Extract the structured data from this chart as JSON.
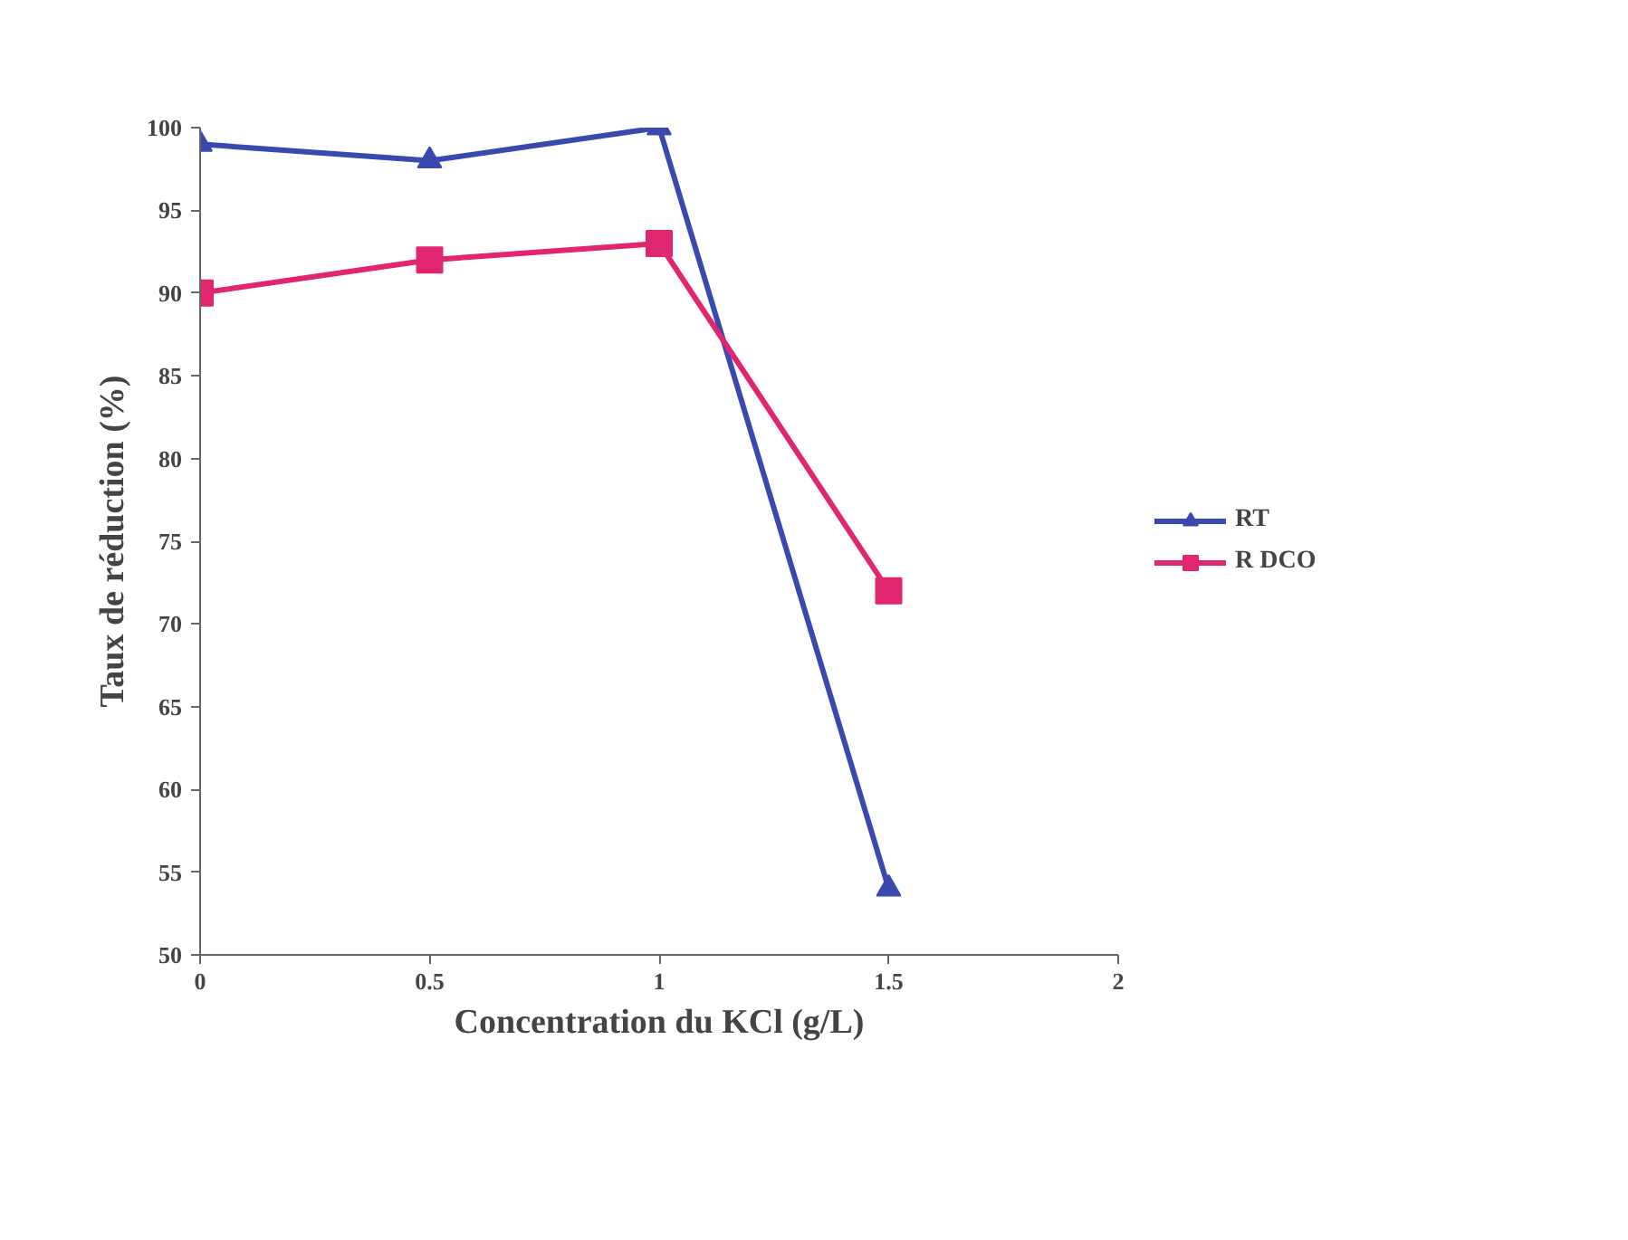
{
  "chart_data": {
    "type": "line",
    "xlabel": "Concentration du KCl (g/L)",
    "ylabel": "Taux de réduction (%)",
    "x": [
      0,
      0.5,
      1,
      1.5
    ],
    "series": [
      {
        "name": "RT",
        "color": "#3a49b0",
        "values": [
          99,
          98,
          100,
          54
        ],
        "marker": "triangle"
      },
      {
        "name": "R DCO",
        "color": "#e0266e",
        "values": [
          90,
          92,
          93,
          72
        ],
        "marker": "square"
      }
    ],
    "xlim": [
      0,
      2
    ],
    "xticks": [
      0,
      0.5,
      1,
      1.5,
      2
    ],
    "ylim": [
      50,
      100
    ],
    "yticks": [
      50,
      55,
      60,
      65,
      70,
      75,
      80,
      85,
      90,
      95,
      100
    ],
    "grid": false,
    "legend": "right",
    "line_style": "solid"
  }
}
